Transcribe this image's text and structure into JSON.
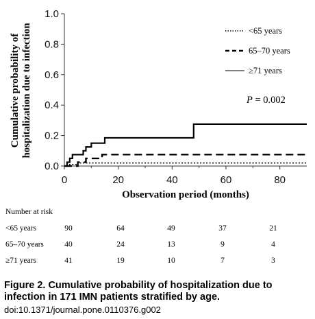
{
  "chart_data": {
    "type": "line",
    "ylabel_lines": [
      "Cumulative probability of",
      "hospitalization due to infection"
    ],
    "xlabel": "Observation period (months)",
    "xlim": [
      0,
      90
    ],
    "ylim": [
      0,
      1.0
    ],
    "x_ticks": [
      0,
      20,
      40,
      60,
      80
    ],
    "y_ticks": [
      "0.0",
      "0.2",
      "0.4",
      "0.6",
      "0.8",
      "1.0"
    ],
    "grid": false,
    "legend_position": "top-right",
    "series": [
      {
        "name": "<65 years",
        "style": "dotted",
        "steps": [
          [
            0,
            0
          ],
          [
            2,
            0.01
          ],
          [
            5,
            0.02
          ],
          [
            90,
            0.02
          ]
        ]
      },
      {
        "name": "65–70 years",
        "style": "dashed",
        "steps": [
          [
            0,
            0
          ],
          [
            5,
            0.025
          ],
          [
            8,
            0.05
          ],
          [
            14,
            0.075
          ],
          [
            90,
            0.075
          ]
        ]
      },
      {
        "name": "≥71 years",
        "style": "solid",
        "steps": [
          [
            0,
            0
          ],
          [
            1,
            0.025
          ],
          [
            2,
            0.05
          ],
          [
            3,
            0.075
          ],
          [
            7,
            0.1
          ],
          [
            8,
            0.125
          ],
          [
            10,
            0.15
          ],
          [
            15,
            0.185
          ],
          [
            48,
            0.275
          ],
          [
            90,
            0.275
          ]
        ]
      }
    ],
    "annotation": {
      "label": "P",
      "text": " = 0.002"
    }
  },
  "risk_table": {
    "title": "Number at risk",
    "rows": [
      {
        "label": "<65 years",
        "values": [
          "90",
          "64",
          "49",
          "37",
          "21"
        ]
      },
      {
        "label": "65–70 years",
        "values": [
          "40",
          "24",
          "13",
          "9",
          "4"
        ]
      },
      {
        "label": "≥71 years",
        "values": [
          "41",
          "19",
          "10",
          "7",
          "3"
        ]
      }
    ]
  },
  "caption": {
    "title": "Figure 2. Cumulative probability of hospitalization due to infection in 171 IMN patients stratified by age.",
    "doi": "doi:10.1371/journal.pone.0110376.g002"
  }
}
